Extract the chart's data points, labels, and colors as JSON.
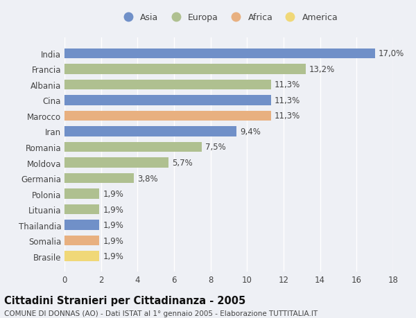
{
  "title": "Cittadini Stranieri per Cittadinanza - 2005",
  "subtitle": "COMUNE DI DONNAS (AO) - Dati ISTAT al 1° gennaio 2005 - Elaborazione TUTTITALIA.IT",
  "categories": [
    "India",
    "Francia",
    "Albania",
    "Cina",
    "Marocco",
    "Iran",
    "Romania",
    "Moldova",
    "Germania",
    "Polonia",
    "Lituania",
    "Thailandia",
    "Somalia",
    "Brasile"
  ],
  "values": [
    17.0,
    13.2,
    11.3,
    11.3,
    11.3,
    9.4,
    7.5,
    5.7,
    3.8,
    1.9,
    1.9,
    1.9,
    1.9,
    1.9
  ],
  "labels": [
    "17,0%",
    "13,2%",
    "11,3%",
    "11,3%",
    "11,3%",
    "9,4%",
    "7,5%",
    "5,7%",
    "3,8%",
    "1,9%",
    "1,9%",
    "1,9%",
    "1,9%",
    "1,9%"
  ],
  "continents": [
    "Asia",
    "Europa",
    "Europa",
    "Asia",
    "Africa",
    "Asia",
    "Europa",
    "Europa",
    "Europa",
    "Europa",
    "Europa",
    "Asia",
    "Africa",
    "America"
  ],
  "continent_colors": {
    "Asia": "#7090c8",
    "Europa": "#afc090",
    "Africa": "#e8b080",
    "America": "#f0d878"
  },
  "legend_order": [
    "Asia",
    "Europa",
    "Africa",
    "America"
  ],
  "xlim": [
    0,
    18
  ],
  "xticks": [
    0,
    2,
    4,
    6,
    8,
    10,
    12,
    14,
    16,
    18
  ],
  "background_color": "#eef0f5",
  "plot_bg_color": "#eef0f5",
  "grid_color": "#ffffff",
  "bar_height": 0.65,
  "label_fontsize": 8.5,
  "title_fontsize": 10.5,
  "subtitle_fontsize": 7.5,
  "legend_fontsize": 9,
  "tick_fontsize": 8.5
}
